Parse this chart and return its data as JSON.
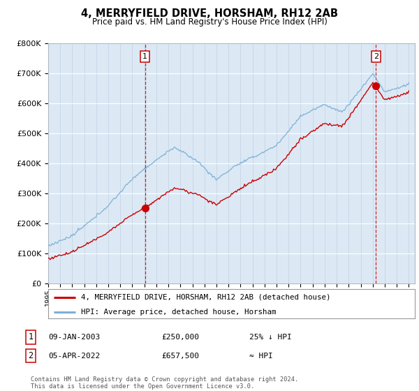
{
  "title": "4, MERRYFIELD DRIVE, HORSHAM, RH12 2AB",
  "subtitle": "Price paid vs. HM Land Registry's House Price Index (HPI)",
  "plot_bg_color": "#dce9f5",
  "hpi_color": "#7db0d5",
  "price_color": "#cc0000",
  "ylim": [
    0,
    800000
  ],
  "yticks": [
    0,
    100000,
    200000,
    300000,
    400000,
    500000,
    600000,
    700000,
    800000
  ],
  "ytick_labels": [
    "£0",
    "£100K",
    "£200K",
    "£300K",
    "£400K",
    "£500K",
    "£600K",
    "£700K",
    "£800K"
  ],
  "xlim_start": 1995,
  "xlim_end": 2025.5,
  "sale1_year": 2003.05,
  "sale1_price": 250000,
  "sale2_year": 2022.27,
  "sale2_price": 657500,
  "legend_label_price": "4, MERRYFIELD DRIVE, HORSHAM, RH12 2AB (detached house)",
  "legend_label_hpi": "HPI: Average price, detached house, Horsham",
  "note1_date": "09-JAN-2003",
  "note1_price": "£250,000",
  "note1_rel": "25% ↓ HPI",
  "note2_date": "05-APR-2022",
  "note2_price": "£657,500",
  "note2_rel": "≈ HPI",
  "footer": "Contains HM Land Registry data © Crown copyright and database right 2024.\nThis data is licensed under the Open Government Licence v3.0."
}
